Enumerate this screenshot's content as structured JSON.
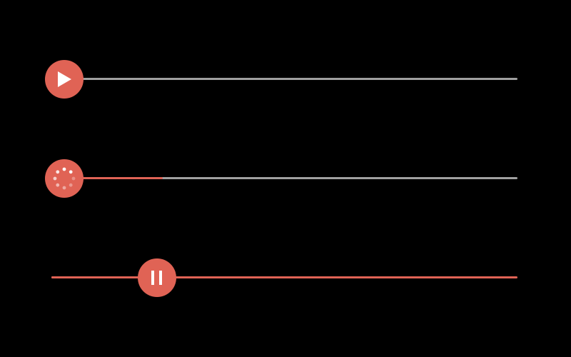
{
  "colors": {
    "accent": "#e06355",
    "track": "#a0a0a0",
    "background": "#000000",
    "icon": "#ffffff"
  },
  "players": [
    {
      "state": "ready",
      "icon": "play-icon",
      "progress": 0.0
    },
    {
      "state": "loading",
      "icon": "loading-spinner-icon",
      "progress": 0.17
    },
    {
      "state": "playing",
      "icon": "pause-icon",
      "progress": 0.22
    }
  ]
}
